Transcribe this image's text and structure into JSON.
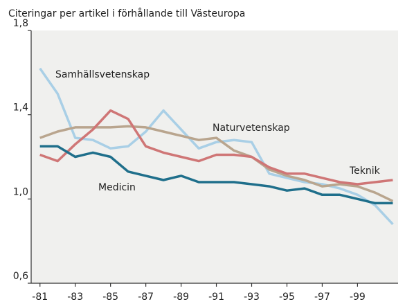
{
  "chart_data": {
    "type": "line",
    "title": "Citeringar per artikel i förhållande till Västeuropa",
    "x": [
      1981,
      1982,
      1983,
      1984,
      1985,
      1986,
      1987,
      1988,
      1989,
      1990,
      1991,
      1992,
      1993,
      1994,
      1995,
      1996,
      1997,
      1998,
      1999,
      2000,
      2001
    ],
    "xlim": [
      1980.5,
      2001.3
    ],
    "xticks": [
      {
        "value": 1981,
        "label": "-81"
      },
      {
        "value": 1983,
        "label": "-83"
      },
      {
        "value": 1985,
        "label": "-85"
      },
      {
        "value": 1987,
        "label": "-87"
      },
      {
        "value": 1989,
        "label": "-89"
      },
      {
        "value": 1991,
        "label": "-91"
      },
      {
        "value": 1993,
        "label": "-93"
      },
      {
        "value": 1995,
        "label": "-95"
      },
      {
        "value": 1997,
        "label": "-97"
      },
      {
        "value": 1999,
        "label": "-99"
      }
    ],
    "ylim": [
      0.6,
      1.8
    ],
    "yticks": [
      {
        "value": 0.6,
        "label": "0,6"
      },
      {
        "value": 1.0,
        "label": "1,0"
      },
      {
        "value": 1.4,
        "label": "1,4"
      },
      {
        "value": 1.8,
        "label": "1,8"
      }
    ],
    "series": [
      {
        "name": "Samhällsvetenskap",
        "color": "#a9cfe6",
        "values": [
          1.62,
          1.5,
          1.29,
          1.28,
          1.24,
          1.25,
          1.32,
          1.42,
          1.33,
          1.24,
          1.27,
          1.28,
          1.27,
          1.12,
          1.1,
          1.08,
          1.07,
          1.05,
          1.02,
          0.97,
          0.88
        ]
      },
      {
        "name": "Naturvetenskap",
        "color": "#b9a58e",
        "values": [
          1.29,
          1.32,
          1.34,
          1.34,
          1.34,
          1.345,
          1.34,
          1.32,
          1.3,
          1.28,
          1.29,
          1.23,
          1.2,
          1.14,
          1.11,
          1.09,
          1.06,
          1.07,
          1.06,
          1.03,
          0.99
        ]
      },
      {
        "name": "Teknik",
        "color": "#cf7676",
        "values": [
          1.21,
          1.18,
          1.26,
          1.33,
          1.42,
          1.38,
          1.25,
          1.22,
          1.2,
          1.18,
          1.21,
          1.21,
          1.2,
          1.15,
          1.12,
          1.12,
          1.1,
          1.08,
          1.07,
          1.08,
          1.09
        ]
      },
      {
        "name": "Medicin",
        "color": "#1f6f8b",
        "values": [
          1.25,
          1.25,
          1.2,
          1.22,
          1.2,
          1.13,
          1.11,
          1.09,
          1.11,
          1.08,
          1.08,
          1.08,
          1.07,
          1.06,
          1.04,
          1.05,
          1.02,
          1.02,
          1.0,
          0.98,
          0.98
        ]
      }
    ]
  }
}
